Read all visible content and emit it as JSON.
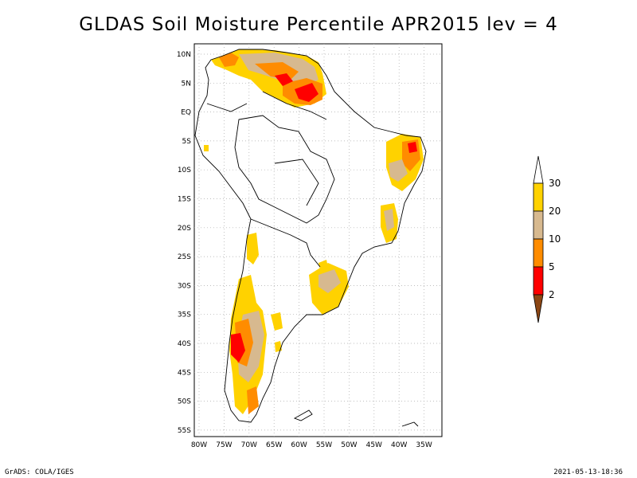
{
  "title": "GLDAS Soil Moisture Percentile APR2015 lev = 4",
  "axes": {
    "lat_labels": [
      "10N",
      "5N",
      "EQ",
      "5S",
      "10S",
      "15S",
      "20S",
      "25S",
      "30S",
      "35S",
      "40S",
      "45S",
      "50S",
      "55S"
    ],
    "lon_labels": [
      "80W",
      "75W",
      "70W",
      "65W",
      "60W",
      "55W",
      "50W",
      "45W",
      "40W",
      "35W"
    ]
  },
  "colorbar": {
    "labels": [
      "30",
      "20",
      "10",
      "5",
      "2"
    ],
    "colors": {
      "above_30": "#ffffff",
      "20_30": "#ffd200",
      "10_20": "#d7b98f",
      "5_10": "#ff8c00",
      "2_5": "#ff0000",
      "below_2": "#8c4614"
    }
  },
  "footer": {
    "left": "GrADS: COLA/IGES",
    "right": "2021-05-13-18:36"
  }
}
